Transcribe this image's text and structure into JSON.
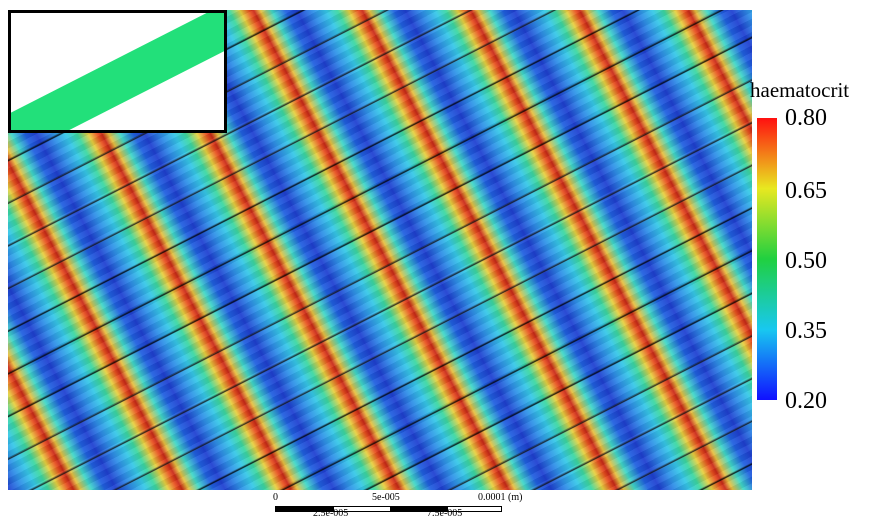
{
  "colorbar": {
    "title": "haematocrit",
    "ticks": [
      "0.80",
      "0.65",
      "0.50",
      "0.35",
      "0.20"
    ]
  },
  "scale_bar": {
    "top_labels": [
      "0",
      "5e-005",
      "0.0001 (m)"
    ],
    "bottom_labels": [
      "2.5e-005",
      "7.5e-005"
    ]
  }
}
